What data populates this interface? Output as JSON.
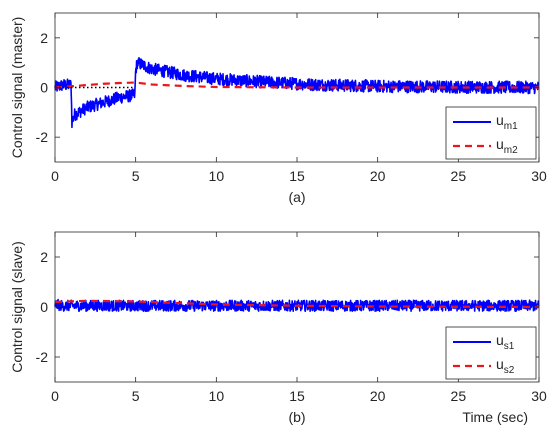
{
  "chart_data": [
    {
      "type": "line",
      "caption": "(a)",
      "ylabel": "Control signal (master)",
      "xlabel": "",
      "xlim": [
        0,
        30
      ],
      "ylim": [
        -3,
        3
      ],
      "xticks": [
        "0",
        "5",
        "10",
        "15",
        "20",
        "25",
        "30"
      ],
      "xtick_values": [
        0,
        5,
        10,
        15,
        20,
        25,
        30
      ],
      "yticks": [
        "-2",
        "0",
        "2"
      ],
      "ytick_values": [
        -2,
        0,
        2
      ],
      "grid": false,
      "legend_position": "bottom-right",
      "reference_line": {
        "y": 0,
        "color": "#000000",
        "style": "dotted"
      },
      "series": [
        {
          "legend_base": "u",
          "legend_sub": "m1",
          "color": "#0000ff",
          "style": "solid",
          "noise_amplitude": 0.25,
          "x": [
            0,
            0.5,
            1.0,
            1.05,
            1.2,
            2,
            3,
            4,
            4.95,
            5.0,
            5.1,
            6,
            8,
            10,
            13,
            16,
            20,
            25,
            30
          ],
          "y": [
            0.0,
            0.1,
            0.1,
            -1.4,
            -1.1,
            -0.8,
            -0.6,
            -0.4,
            -0.3,
            0.7,
            1.0,
            0.75,
            0.5,
            0.35,
            0.22,
            0.12,
            0.05,
            0.02,
            0.0
          ]
        },
        {
          "legend_base": "u",
          "legend_sub": "m2",
          "color": "#e8171e",
          "style": "dashed",
          "noise_amplitude": 0.0,
          "x": [
            0,
            1,
            2,
            3,
            4,
            5,
            6,
            8,
            10,
            15,
            20,
            30
          ],
          "y": [
            0.0,
            0.05,
            0.1,
            0.15,
            0.18,
            0.2,
            0.12,
            0.06,
            0.02,
            0.0,
            0.0,
            0.0
          ]
        }
      ]
    },
    {
      "type": "line",
      "caption": "(b)",
      "ylabel": "Control signal (slave)",
      "xlabel": "Time (sec)",
      "xlim": [
        0,
        30
      ],
      "ylim": [
        -3,
        3
      ],
      "xticks": [
        "0",
        "5",
        "10",
        "15",
        "20",
        "25",
        "30"
      ],
      "xtick_values": [
        0,
        5,
        10,
        15,
        20,
        25,
        30
      ],
      "yticks": [
        "-2",
        "0",
        "2"
      ],
      "ytick_values": [
        -2,
        0,
        2
      ],
      "grid": false,
      "legend_position": "bottom-right",
      "series": [
        {
          "legend_base": "u",
          "legend_sub": "s1",
          "color": "#0000ff",
          "style": "solid",
          "noise_amplitude": 0.22,
          "x": [
            0,
            0.5,
            1,
            2,
            5,
            10,
            15,
            20,
            25,
            30
          ],
          "y": [
            0.1,
            0.05,
            0.05,
            0.05,
            0.05,
            0.05,
            0.05,
            0.05,
            0.05,
            0.05
          ]
        },
        {
          "legend_base": "u",
          "legend_sub": "s2",
          "color": "#e8171e",
          "style": "dashed",
          "noise_amplitude": 0.0,
          "x": [
            0,
            2,
            5,
            8,
            10,
            15,
            20,
            30
          ],
          "y": [
            0.2,
            0.25,
            0.22,
            0.15,
            0.1,
            0.05,
            0.02,
            0.0
          ]
        }
      ]
    }
  ]
}
